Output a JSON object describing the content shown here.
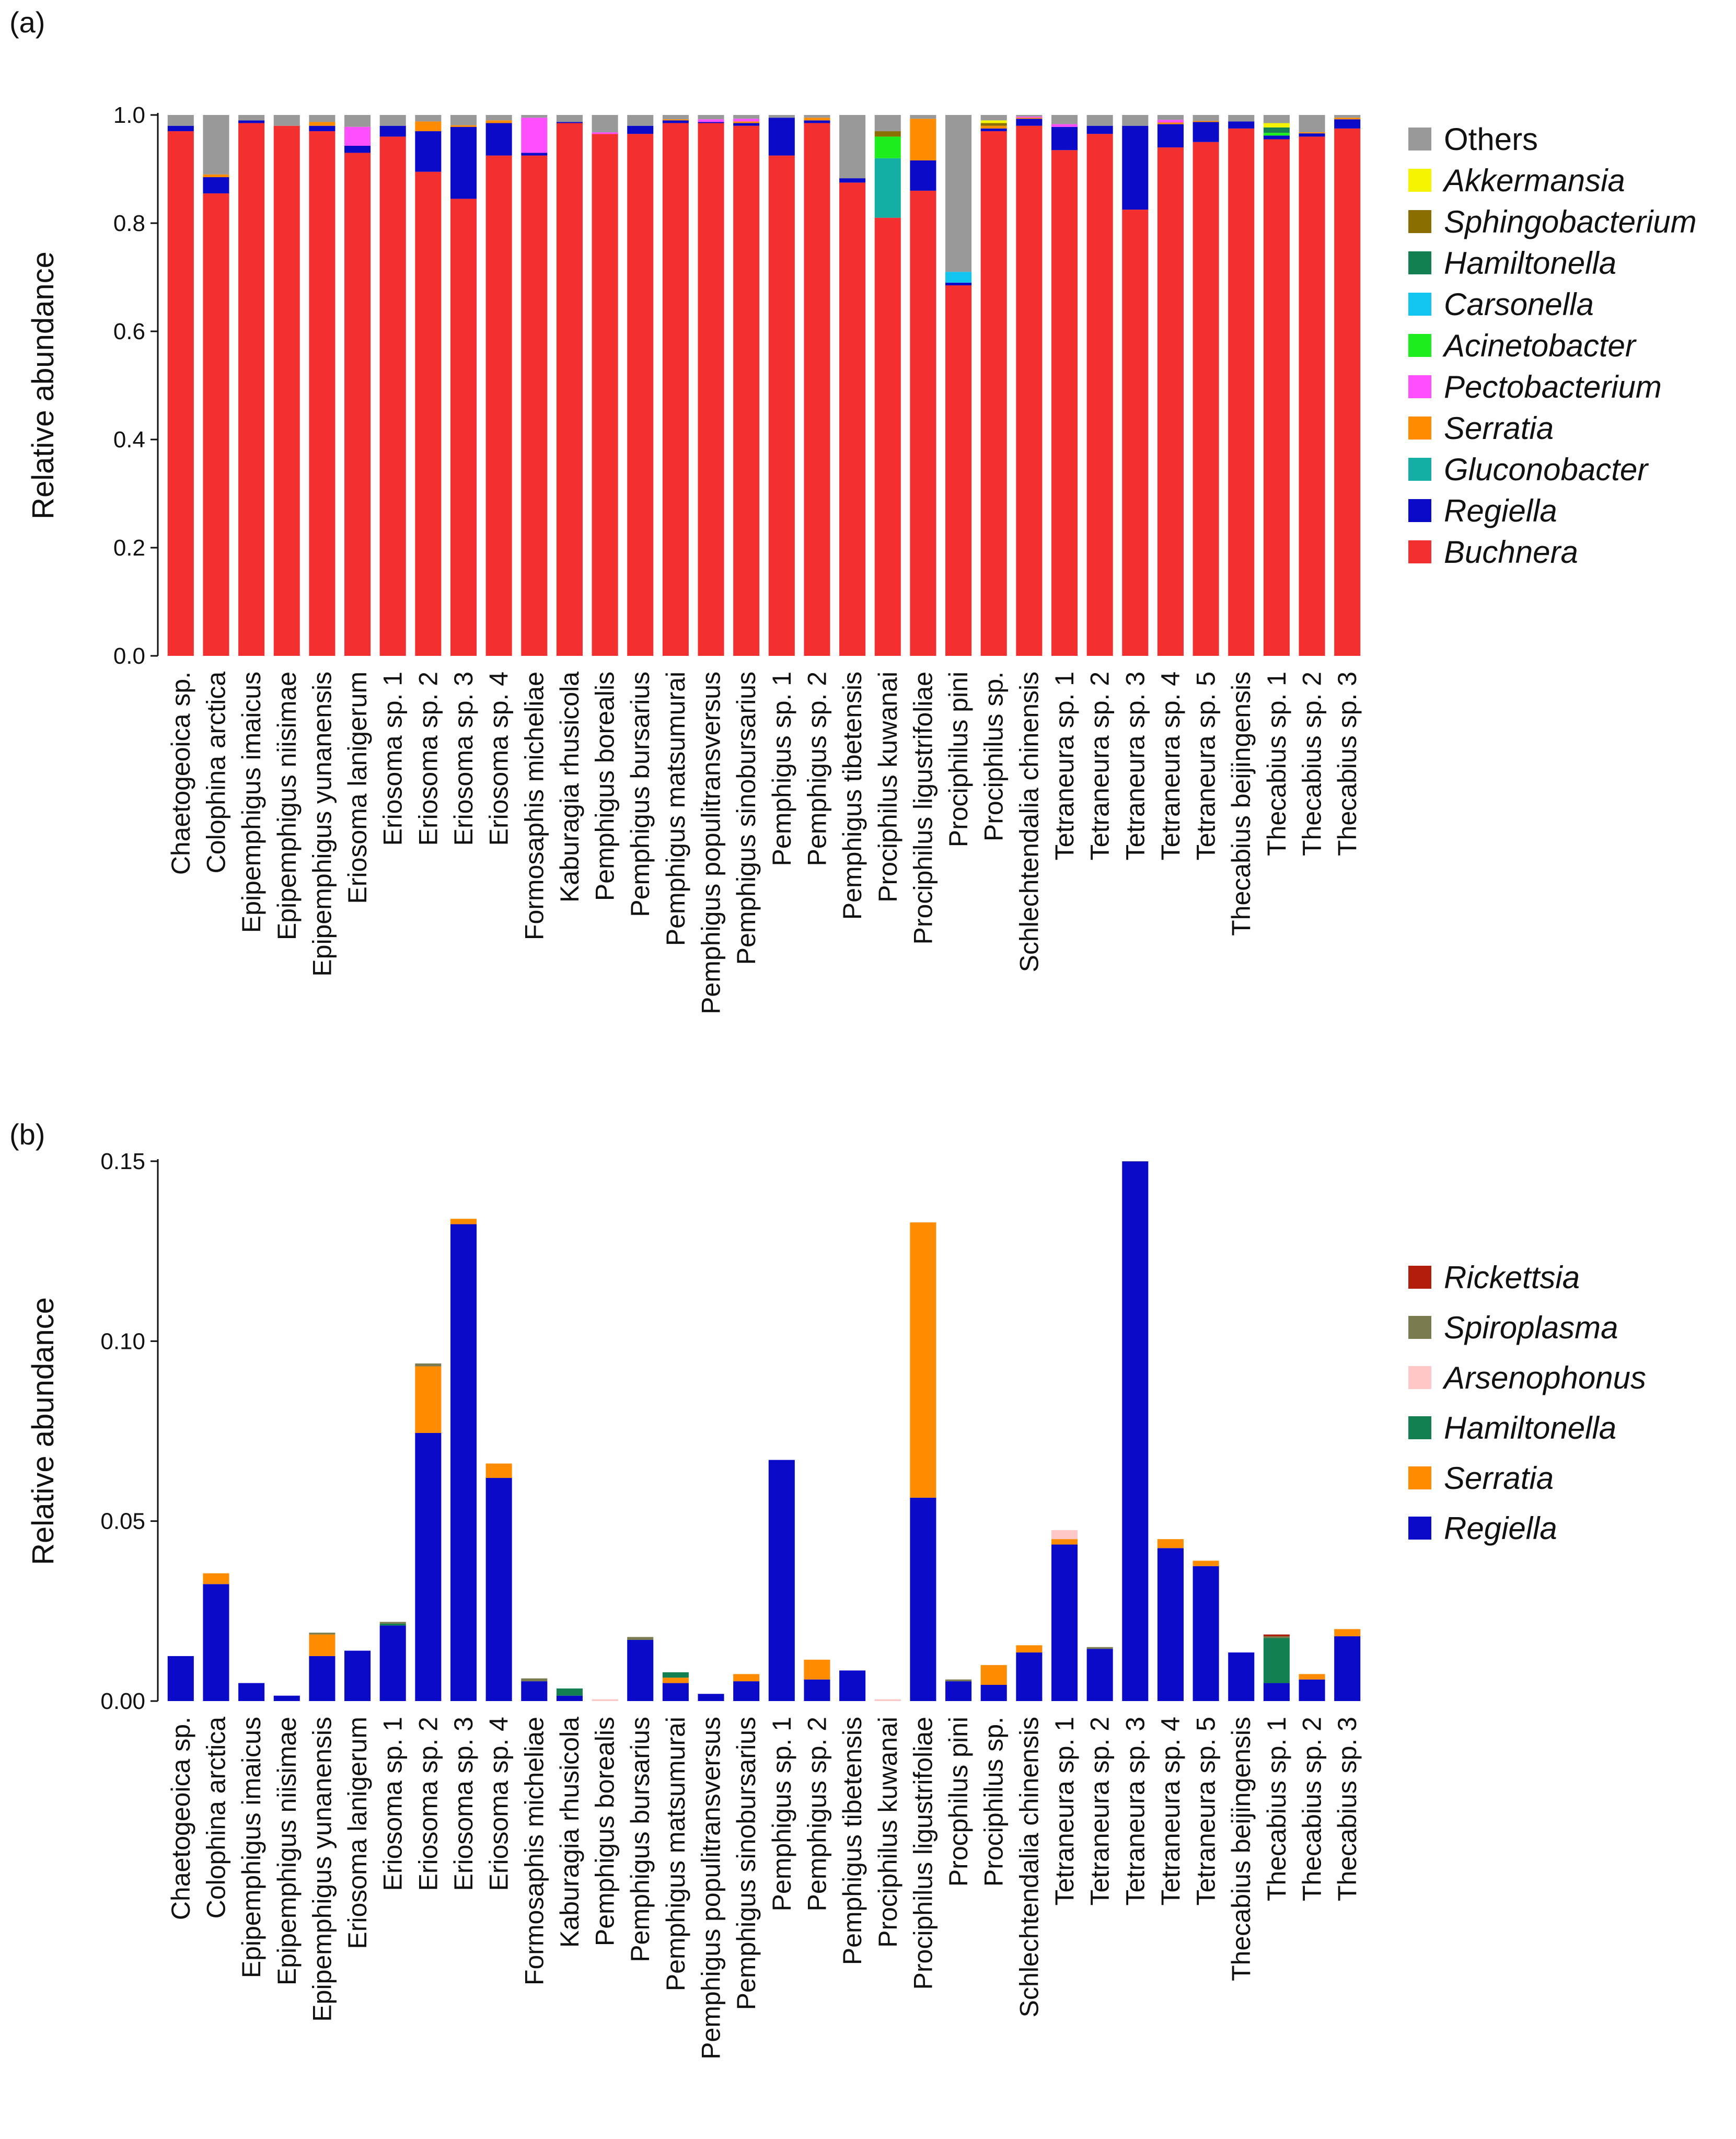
{
  "chart_data": [
    {
      "panel": "(a)",
      "type": "bar",
      "stacked": true,
      "title": "",
      "xlabel": "",
      "ylabel": "Relative abundance",
      "ylim": [
        0,
        1.0
      ],
      "yticks": [
        "0.0",
        "0.2",
        "0.4",
        "0.6",
        "0.8",
        "1.0"
      ],
      "ytick_values": [
        0,
        0.2,
        0.4,
        0.6,
        0.8,
        1.0
      ],
      "legend_position": "right",
      "categories": [
        "Chaetogeoica sp.",
        "Colophina arctica",
        "Epipemphigus imaicus",
        "Epipemphigus niisimae",
        "Epipemphigus yunanensis",
        "Eriosoma lanigerum",
        "Eriosoma sp. 1",
        "Eriosoma sp. 2",
        "Eriosoma sp. 3",
        "Eriosoma sp. 4",
        "Formosaphis micheliae",
        "Kaburagia rhusicola",
        "Pemphigus borealis",
        "Pemphigus bursarius",
        "Pemphigus matsumurai",
        "Pemphigus populitransversus",
        "Pemphigus sinobursarius",
        "Pemphigus sp. 1",
        "Pemphigus sp. 2",
        "Pemphigus tibetensis",
        "Prociphilus kuwanai",
        "Prociphilus ligustrifoliae",
        "Prociphilus pini",
        "Prociphilus sp.",
        "Schlechtendalia chinensis",
        "Tetraneura sp. 1",
        "Tetraneura sp. 2",
        "Tetraneura sp. 3",
        "Tetraneura sp. 4",
        "Tetraneura sp. 5",
        "Thecabius beijingensis",
        "Thecabius sp. 1",
        "Thecabius sp. 2",
        "Thecabius sp. 3"
      ],
      "series": [
        {
          "name": "Buchnera",
          "color": "#F42F2F",
          "values": [
            0.97,
            0.855,
            0.985,
            0.98,
            0.97,
            0.93,
            0.96,
            0.895,
            0.845,
            0.925,
            0.925,
            0.985,
            0.965,
            0.965,
            0.985,
            0.985,
            0.98,
            0.925,
            0.985,
            0.875,
            0.81,
            0.86,
            0.685,
            0.97,
            0.98,
            0.935,
            0.965,
            0.825,
            0.94,
            0.95,
            0.975,
            0.955,
            0.96,
            0.975
          ]
        },
        {
          "name": "Regiella",
          "color": "#0A0AC8",
          "values": [
            0.01,
            0.03,
            0.005,
            0.0,
            0.01,
            0.013,
            0.02,
            0.075,
            0.133,
            0.06,
            0.005,
            0.002,
            0.0,
            0.015,
            0.005,
            0.002,
            0.005,
            0.07,
            0.005,
            0.008,
            0.0,
            0.056,
            0.005,
            0.005,
            0.013,
            0.043,
            0.015,
            0.155,
            0.043,
            0.037,
            0.013,
            0.007,
            0.006,
            0.017
          ]
        },
        {
          "name": "Gluconobacter",
          "color": "#13AFA5",
          "values": [
            0,
            0,
            0,
            0,
            0,
            0,
            0,
            0,
            0,
            0,
            0,
            0,
            0,
            0,
            0,
            0,
            0,
            0,
            0,
            0,
            0.11,
            0,
            0,
            0,
            0,
            0,
            0,
            0,
            0,
            0,
            0,
            0,
            0,
            0
          ]
        },
        {
          "name": "Serratia",
          "color": "#FF8C00",
          "values": [
            0,
            0.005,
            0,
            0,
            0.007,
            0,
            0,
            0.018,
            0.003,
            0.005,
            0,
            0,
            0,
            0,
            0.002,
            0,
            0.003,
            0,
            0.005,
            0,
            0,
            0.077,
            0,
            0.005,
            0.002,
            0,
            0,
            0,
            0.003,
            0.002,
            0,
            0,
            0.002,
            0.003
          ]
        },
        {
          "name": "Pectobacterium",
          "color": "#FF4FFF",
          "values": [
            0,
            0,
            0,
            0,
            0,
            0.035,
            0,
            0,
            0,
            0,
            0.065,
            0,
            0.003,
            0,
            0,
            0.005,
            0.005,
            0,
            0,
            0,
            0,
            0,
            0,
            0,
            0.002,
            0.005,
            0,
            0,
            0.005,
            0,
            0,
            0,
            0,
            0
          ]
        },
        {
          "name": "Acinetobacter",
          "color": "#1EEE1E",
          "values": [
            0,
            0,
            0,
            0,
            0,
            0,
            0,
            0,
            0,
            0,
            0,
            0,
            0,
            0,
            0,
            0,
            0,
            0,
            0,
            0,
            0.04,
            0,
            0,
            0,
            0,
            0,
            0,
            0,
            0,
            0,
            0,
            0.005,
            0,
            0
          ]
        },
        {
          "name": "Carsonella",
          "color": "#12C5F0",
          "values": [
            0,
            0,
            0,
            0,
            0,
            0,
            0,
            0,
            0,
            0,
            0,
            0,
            0,
            0,
            0,
            0,
            0,
            0,
            0,
            0,
            0,
            0,
            0.02,
            0,
            0,
            0,
            0,
            0,
            0,
            0,
            0,
            0,
            0,
            0
          ]
        },
        {
          "name": "Hamiltonella",
          "color": "#128050",
          "values": [
            0,
            0,
            0,
            0,
            0,
            0,
            0,
            0,
            0,
            0,
            0,
            0,
            0,
            0,
            0,
            0,
            0,
            0,
            0,
            0,
            0,
            0,
            0,
            0,
            0,
            0,
            0,
            0,
            0,
            0,
            0,
            0.01,
            0,
            0
          ]
        },
        {
          "name": "Sphingobacterium",
          "color": "#8B6E00",
          "values": [
            0,
            0,
            0,
            0,
            0,
            0,
            0,
            0,
            0,
            0,
            0,
            0,
            0,
            0,
            0,
            0,
            0,
            0,
            0,
            0,
            0.01,
            0,
            0,
            0.005,
            0,
            0,
            0,
            0,
            0,
            0,
            0,
            0,
            0,
            0
          ]
        },
        {
          "name": "Akkermansia",
          "color": "#F5F500",
          "values": [
            0,
            0,
            0,
            0,
            0,
            0,
            0,
            0,
            0,
            0,
            0,
            0,
            0,
            0,
            0,
            0,
            0,
            0,
            0,
            0,
            0,
            0,
            0,
            0.005,
            0,
            0,
            0,
            0,
            0,
            0,
            0,
            0.008,
            0,
            0
          ]
        },
        {
          "name": "Others",
          "color": "#999999",
          "values": [
            0.02,
            0.11,
            0.01,
            0.02,
            0.013,
            0.022,
            0.02,
            0.012,
            0.019,
            0.01,
            0.005,
            0.013,
            0.032,
            0.02,
            0.008,
            0.008,
            0.007,
            0.005,
            0.005,
            0.117,
            0.03,
            0.007,
            0.29,
            0.01,
            0.003,
            0.017,
            0.02,
            0.02,
            0.009,
            0.011,
            0.012,
            0.015,
            0.032,
            0.005
          ]
        }
      ]
    },
    {
      "panel": "(b)",
      "type": "bar",
      "stacked": true,
      "title": "",
      "xlabel": "",
      "ylabel": "Relative abundance",
      "ylim": [
        0,
        0.15
      ],
      "yticks": [
        "0.00",
        "0.05",
        "0.10",
        "0.15"
      ],
      "ytick_values": [
        0,
        0.05,
        0.1,
        0.15
      ],
      "legend_position": "right",
      "categories": [
        "Chaetogeoica sp.",
        "Colophina arctica",
        "Epipemphigus imaicus",
        "Epipemphigus niisimae",
        "Epipemphigus yunanensis",
        "Eriosoma lanigerum",
        "Eriosoma sp. 1",
        "Eriosoma sp. 2",
        "Eriosoma sp. 3",
        "Eriosoma sp. 4",
        "Formosaphis micheliae",
        "Kaburagia rhusicola",
        "Pemphigus borealis",
        "Pemphigus bursarius",
        "Pemphigus matsumurai",
        "Pemphigus populitransversus",
        "Pemphigus sinobursarius",
        "Pemphigus sp. 1",
        "Pemphigus sp. 2",
        "Pemphigus tibetensis",
        "Prociphilus kuwanai",
        "Prociphilus ligustrifoliae",
        "Procphilus pini",
        "Prociphilus sp.",
        "Schlechtendalia chinensis",
        "Tetraneura sp. 1",
        "Tetraneura sp. 2",
        "Tetraneura sp. 3",
        "Tetraneura sp. 4",
        "Tetraneura sp. 5",
        "Thecabius beijingensis",
        "Thecabius sp. 1",
        "Thecabius sp. 2",
        "Thecabius sp. 3"
      ],
      "series": [
        {
          "name": "Regiella",
          "color": "#0A0AC8",
          "values": [
            0.0125,
            0.0325,
            0.005,
            0.0015,
            0.0125,
            0.014,
            0.021,
            0.0745,
            0.1325,
            0.062,
            0.0055,
            0.0015,
            0.0,
            0.017,
            0.005,
            0.002,
            0.0055,
            0.067,
            0.006,
            0.0085,
            0.0,
            0.0565,
            0.0055,
            0.0045,
            0.0135,
            0.0435,
            0.0145,
            0.1555,
            0.0425,
            0.0375,
            0.0135,
            0.005,
            0.006,
            0.018
          ]
        },
        {
          "name": "Serratia",
          "color": "#FF8C00",
          "values": [
            0,
            0.003,
            0,
            0,
            0.006,
            0,
            0,
            0.0185,
            0.0015,
            0.004,
            0,
            0,
            0,
            0,
            0.0015,
            0,
            0.002,
            0,
            0.0055,
            0,
            0,
            0.0765,
            0,
            0.0055,
            0.002,
            0.0015,
            0,
            0,
            0.0025,
            0.0015,
            0,
            0,
            0.0015,
            0.002
          ]
        },
        {
          "name": "Hamiltonella",
          "color": "#128050",
          "values": [
            0,
            0,
            0,
            0,
            0,
            0,
            0.0005,
            0,
            0,
            0,
            0,
            0.002,
            0,
            0,
            0.0015,
            0,
            0,
            0,
            0,
            0,
            0,
            0,
            0,
            0,
            0,
            0,
            0,
            0,
            0,
            0,
            0,
            0.0125,
            0,
            0
          ]
        },
        {
          "name": "Arsenophonus",
          "color": "#FFC8C8",
          "values": [
            0,
            0,
            0,
            0,
            0,
            0,
            0,
            0,
            0,
            0,
            0,
            0,
            0.0005,
            0,
            0,
            0,
            0,
            0,
            0,
            0,
            0.0005,
            0,
            0,
            0,
            0,
            0.0025,
            0,
            0,
            0,
            0,
            0,
            0,
            0,
            0
          ]
        },
        {
          "name": "Spiroplasma",
          "color": "#7B7B50",
          "values": [
            0,
            0,
            0,
            0,
            0.0005,
            0,
            0.0005,
            0.0008,
            0,
            0,
            0.0008,
            0,
            0,
            0.0008,
            0,
            0,
            0,
            0,
            0,
            0,
            0,
            0,
            0.0005,
            0,
            0,
            0,
            0.0005,
            0.001,
            0,
            0,
            0,
            0.0005,
            0,
            0
          ]
        },
        {
          "name": "Rickettsia",
          "color": "#B01E0A",
          "values": [
            0,
            0,
            0,
            0,
            0,
            0,
            0,
            0,
            0,
            0,
            0,
            0,
            0,
            0,
            0,
            0,
            0,
            0,
            0,
            0,
            0,
            0,
            0,
            0,
            0,
            0,
            0,
            0,
            0,
            0,
            0,
            0.0005,
            0,
            0
          ]
        }
      ]
    }
  ]
}
